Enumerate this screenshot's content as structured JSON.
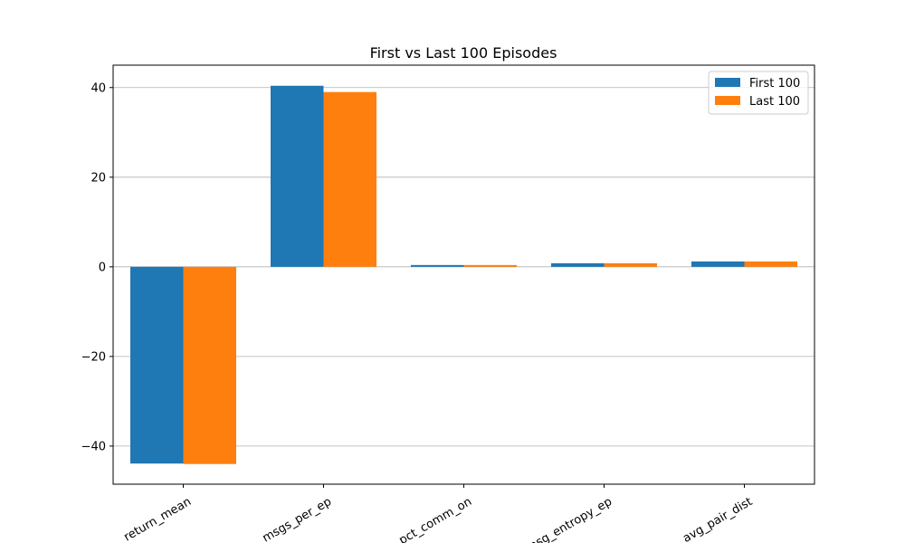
{
  "chart_data": {
    "type": "bar",
    "title": "First vs Last 100 Episodes",
    "xlabel": "",
    "ylabel": "",
    "categories": [
      "return_mean",
      "msgs_per_ep",
      "pct_comm_on",
      "msg_entropy_ep",
      "avg_pair_dist"
    ],
    "series": [
      {
        "name": "First 100",
        "color": "#1f77b4",
        "values": [
          -43.9,
          40.4,
          0.4,
          0.8,
          1.2
        ]
      },
      {
        "name": "Last 100",
        "color": "#ff7f0e",
        "values": [
          -44.0,
          39.0,
          0.4,
          0.8,
          1.2
        ]
      }
    ],
    "ylim": [
      -48.5,
      45.0
    ],
    "yticks": [
      40,
      20,
      0,
      -20,
      -40
    ],
    "ytick_labels": [
      "40",
      "20",
      "0",
      "−20",
      "−40"
    ],
    "grid": true,
    "grid_axis": "y",
    "legend_position": "top-right"
  }
}
